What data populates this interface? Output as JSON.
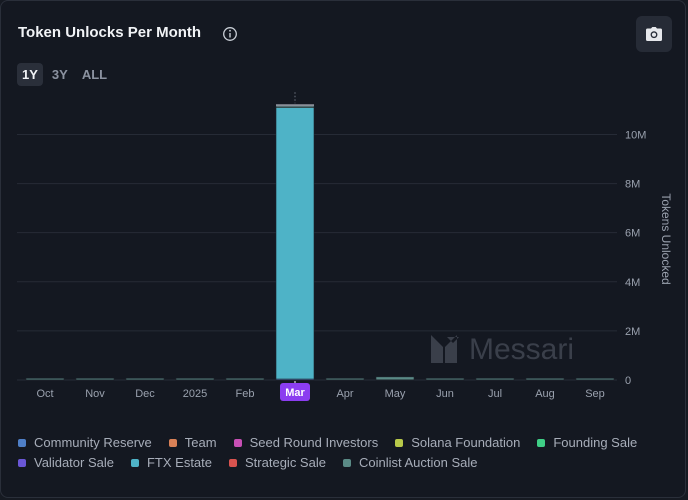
{
  "header": {
    "title": "Token Unlocks Per Month",
    "info_icon": "info-circle-icon",
    "camera_icon": "camera-icon"
  },
  "range_tabs": [
    {
      "label": "1Y",
      "active": true
    },
    {
      "label": "3Y",
      "active": false
    },
    {
      "label": "ALL",
      "active": false
    }
  ],
  "watermark": "Messari",
  "chart_data": {
    "type": "bar",
    "stacked": true,
    "categories": [
      "Oct",
      "Nov",
      "Dec",
      "2025",
      "Feb",
      "Mar",
      "Apr",
      "May",
      "Jun",
      "Jul",
      "Aug",
      "Sep"
    ],
    "highlighted_category": "Mar",
    "ylabel": "Tokens Unlocked",
    "ylim": [
      0,
      11200000
    ],
    "yticks": [
      0,
      2000000,
      4000000,
      6000000,
      8000000,
      10000000
    ],
    "ytick_labels": [
      "0",
      "2M",
      "4M",
      "6M",
      "8M",
      "10M"
    ],
    "y_axis_side": "right",
    "grid": true,
    "legend_position": "bottom",
    "series": [
      {
        "name": "Community Reserve",
        "color": "#4f7fc7",
        "values": [
          8000,
          8000,
          8000,
          8000,
          8000,
          40000,
          8000,
          8000,
          8000,
          8000,
          8000,
          8000
        ]
      },
      {
        "name": "Team",
        "color": "#d98157",
        "values": [
          0,
          0,
          0,
          0,
          0,
          0,
          0,
          0,
          0,
          0,
          0,
          0
        ]
      },
      {
        "name": "Seed Round Investors",
        "color": "#c74fb5",
        "values": [
          0,
          0,
          0,
          0,
          0,
          0,
          0,
          0,
          0,
          0,
          0,
          0
        ]
      },
      {
        "name": "Solana Foundation",
        "color": "#b8c94a",
        "values": [
          0,
          0,
          0,
          0,
          0,
          0,
          0,
          0,
          0,
          0,
          0,
          0
        ]
      },
      {
        "name": "Founding Sale",
        "color": "#3fcf86",
        "values": [
          0,
          0,
          0,
          0,
          0,
          0,
          0,
          0,
          0,
          0,
          0,
          0
        ]
      },
      {
        "name": "Validator Sale",
        "color": "#6a57d6",
        "values": [
          0,
          0,
          0,
          0,
          0,
          0,
          0,
          0,
          0,
          0,
          0,
          0
        ]
      },
      {
        "name": "FTX Estate",
        "color": "#4eb3c7",
        "values": [
          0,
          0,
          0,
          0,
          0,
          11050000,
          0,
          0,
          0,
          0,
          0,
          0
        ]
      },
      {
        "name": "Strategic Sale",
        "color": "#d9534f",
        "values": [
          0,
          0,
          0,
          0,
          0,
          0,
          0,
          0,
          0,
          0,
          0,
          0
        ]
      },
      {
        "name": "Coinlist Auction Sale",
        "color": "#5a8a86",
        "values": [
          50000,
          50000,
          50000,
          50000,
          50000,
          60000,
          50000,
          120000,
          50000,
          50000,
          50000,
          50000
        ]
      }
    ]
  },
  "colors": {
    "background": "#141821",
    "grid": "#262b36",
    "axis_text": "#9aa1ae",
    "highlight_badge": "#8b3df0"
  }
}
